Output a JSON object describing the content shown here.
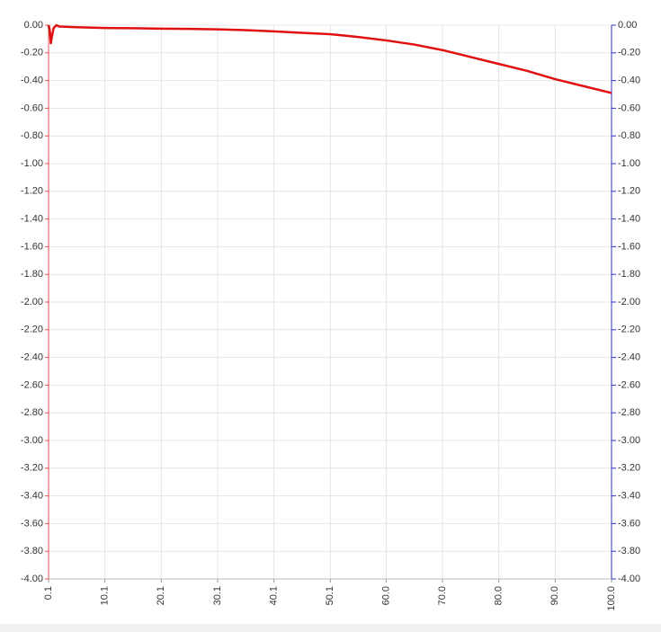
{
  "chart_data": {
    "type": "line",
    "x": [
      0.1,
      0.3,
      0.5,
      0.7,
      1,
      1.5,
      2,
      5,
      10,
      15,
      20,
      25,
      30,
      35,
      40,
      45,
      50,
      55,
      60,
      65,
      70,
      75,
      80,
      85,
      90,
      95,
      100
    ],
    "series": [
      {
        "color": "#2e8b2e",
        "values": [
          0,
          -0.05,
          -0.1,
          null,
          null,
          null,
          null,
          null,
          null,
          null,
          null,
          null,
          null,
          null,
          null,
          null,
          null,
          null,
          null,
          null,
          null,
          null,
          null,
          null,
          null,
          null,
          null
        ]
      },
      {
        "color": "#e01010",
        "values": [
          0,
          -0.03,
          -0.13,
          -0.08,
          -0.02,
          0,
          -0.01,
          -0.015,
          -0.02,
          -0.022,
          -0.025,
          -0.027,
          -0.03,
          -0.036,
          -0.045,
          -0.055,
          -0.065,
          -0.085,
          -0.11,
          -0.14,
          -0.18,
          -0.23,
          -0.28,
          -0.33,
          -0.39,
          -0.44,
          -0.49
        ]
      }
    ],
    "xlim": [
      0.1,
      100
    ],
    "xticks": [
      0.1,
      10.1,
      20.1,
      30.1,
      40.1,
      50.1,
      {
        "value": 60,
        "label": "60.0"
      },
      {
        "value": 70,
        "label": "70.0"
      },
      {
        "value": 80,
        "label": "80.0"
      },
      {
        "value": 90,
        "label": "90.0"
      },
      {
        "value": 100,
        "label": "100.0"
      }
    ],
    "ylim": [
      -4,
      0
    ],
    "yticks": [
      {
        "value": 0,
        "label": "0.00"
      },
      {
        "value": -0.2,
        "label": "-0.20"
      },
      {
        "value": -0.4,
        "label": "-0.40"
      },
      {
        "value": -0.6,
        "label": "-0.60"
      },
      {
        "value": -0.8,
        "label": "-0.80"
      },
      {
        "value": -1,
        "label": "-1.00"
      },
      {
        "value": -1.2,
        "label": "-1.20"
      },
      {
        "value": -1.4,
        "label": "-1.40"
      },
      {
        "value": -1.6,
        "label": "-1.60"
      },
      {
        "value": -1.8,
        "label": "-1.80"
      },
      {
        "value": -2,
        "label": "-2.00"
      },
      {
        "value": -2.2,
        "label": "-2.20"
      },
      {
        "value": -2.4,
        "label": "-2.40"
      },
      {
        "value": -2.6,
        "label": "-2.60"
      },
      {
        "value": -2.8,
        "label": "-2.80"
      },
      {
        "value": -3,
        "label": "-3.00"
      },
      {
        "value": -3.2,
        "label": "-3.20"
      },
      {
        "value": -3.4,
        "label": "-3.40"
      },
      {
        "value": -3.6,
        "label": "-3.60"
      },
      {
        "value": -3.8,
        "label": "-3.80"
      },
      {
        "value": -4,
        "label": "-4.00"
      }
    ],
    "y2lim": [
      -4,
      0
    ],
    "y2ticks": [
      {
        "value": 0,
        "label": "0.00"
      },
      {
        "value": -0.2,
        "label": "-0.20"
      },
      {
        "value": -0.4,
        "label": "-0.40"
      },
      {
        "value": -0.6,
        "label": "-0.60"
      },
      {
        "value": -0.8,
        "label": "-0.80"
      },
      {
        "value": -1,
        "label": "-1.00"
      },
      {
        "value": -1.2,
        "label": "-1.20"
      },
      {
        "value": -1.4,
        "label": "-1.40"
      },
      {
        "value": -1.6,
        "label": "-1.60"
      },
      {
        "value": -1.8,
        "label": "-1.80"
      },
      {
        "value": -2,
        "label": "-2.00"
      },
      {
        "value": -2.2,
        "label": "-2.20"
      },
      {
        "value": -2.4,
        "label": "-2.40"
      },
      {
        "value": -2.6,
        "label": "-2.60"
      },
      {
        "value": -2.8,
        "label": "-2.80"
      },
      {
        "value": -3,
        "label": "-3.00"
      },
      {
        "value": -3.2,
        "label": "-3.20"
      },
      {
        "value": -3.4,
        "label": "-3.40"
      },
      {
        "value": -3.6,
        "label": "-3.60"
      },
      {
        "value": -3.8,
        "label": "-3.80"
      },
      {
        "value": -4,
        "label": "-4.00"
      }
    ],
    "grid": true
  }
}
